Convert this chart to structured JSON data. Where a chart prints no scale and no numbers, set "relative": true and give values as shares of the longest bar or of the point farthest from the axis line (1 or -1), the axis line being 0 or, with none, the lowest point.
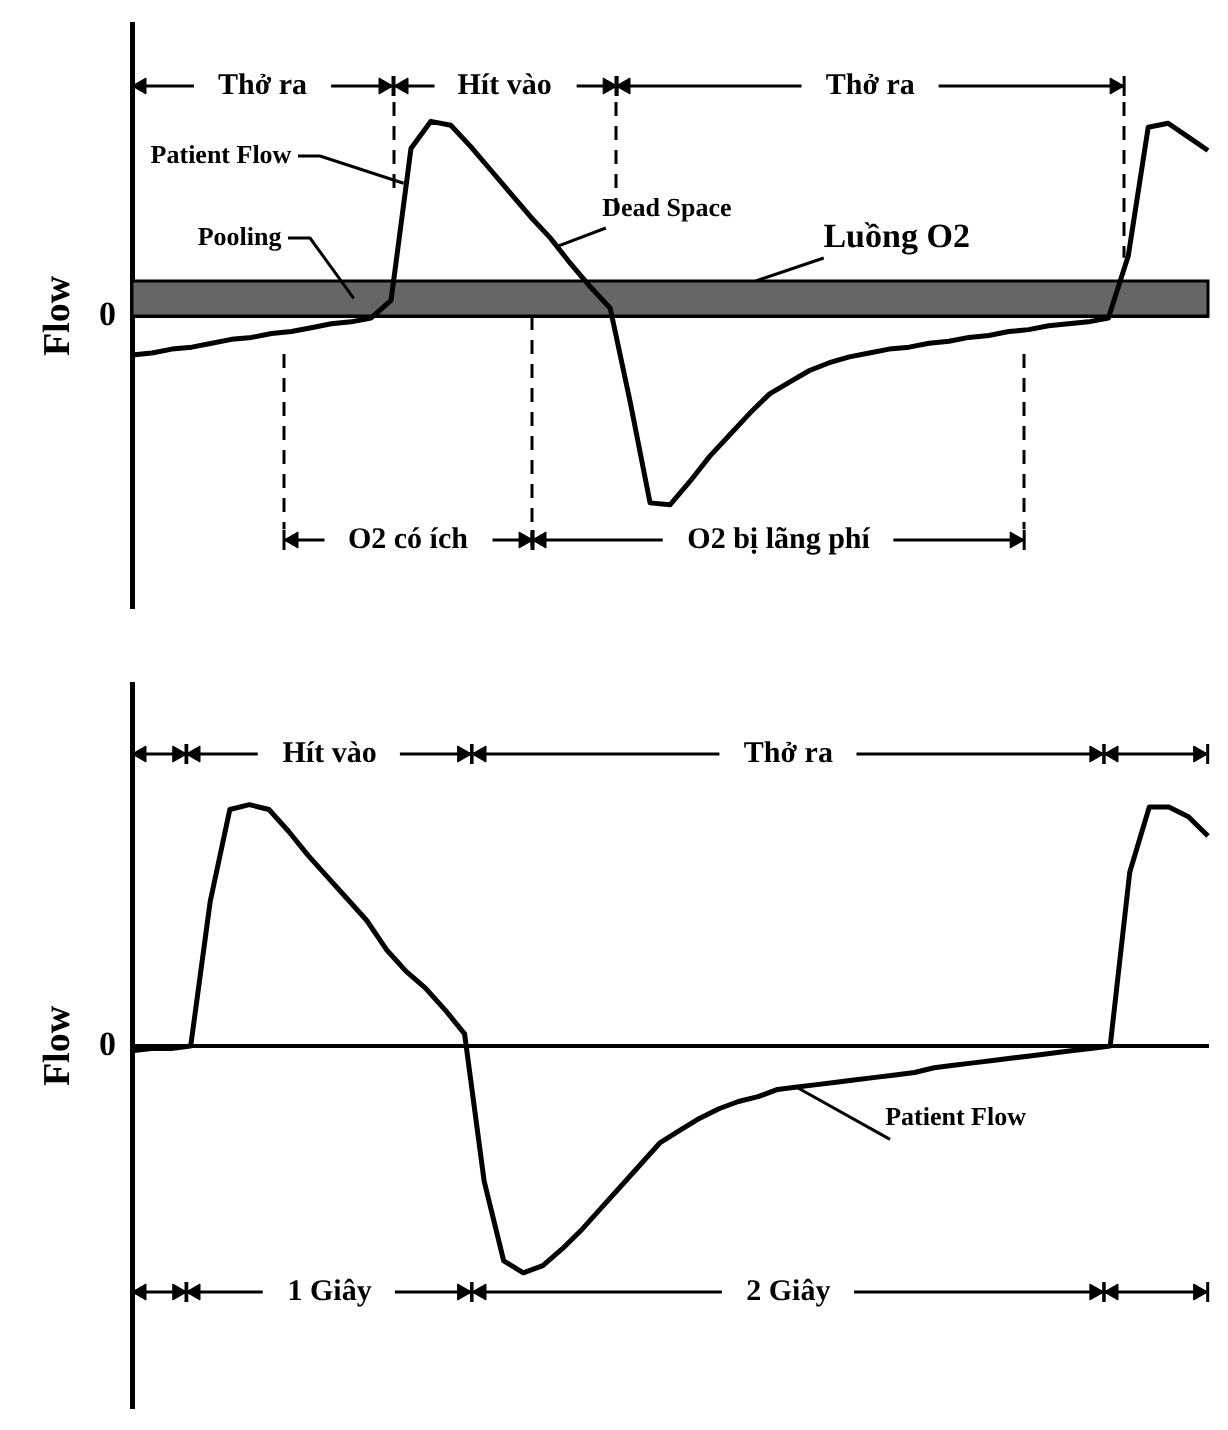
{
  "chart_data": [
    {
      "type": "line",
      "relative": true,
      "ylabel": "Flow",
      "legend": false,
      "grid": false,
      "marker": "none",
      "line_style": "solid",
      "categories": [
        null,
        null,
        null,
        null,
        null,
        null,
        null,
        null,
        null,
        null,
        null,
        null,
        null,
        null,
        null,
        null,
        null,
        null,
        null,
        null,
        null,
        null,
        null,
        null,
        null,
        null,
        null,
        null,
        null,
        null,
        null,
        null,
        null,
        null,
        null,
        null,
        null,
        null,
        null,
        null,
        null,
        null,
        null,
        null,
        null,
        null,
        null,
        null,
        null,
        null,
        null,
        null,
        null,
        null,
        null
      ],
      "series": [
        {
          "color": "#000000",
          "values": [
            -0.2,
            -0.19,
            -0.17,
            -0.16,
            -0.14,
            -0.12,
            -0.11,
            -0.09,
            -0.08,
            -0.06,
            -0.04,
            -0.03,
            -0.01,
            0.08,
            0.86,
            1.0,
            0.98,
            0.87,
            0.75,
            0.63,
            0.51,
            0.4,
            0.27,
            0.15,
            0.04,
            -0.44,
            -0.96,
            -0.97,
            -0.85,
            -0.72,
            -0.61,
            -0.5,
            -0.4,
            -0.34,
            -0.28,
            -0.24,
            -0.21,
            -0.19,
            -0.17,
            -0.16,
            -0.14,
            -0.13,
            -0.11,
            -0.1,
            -0.08,
            -0.07,
            -0.05,
            -0.04,
            -0.03,
            -0.01,
            0.31,
            0.97,
            0.99,
            0.92,
            0.85
          ]
        }
      ],
      "bands": [
        {
          "axis": "y",
          "from": 0,
          "to": 0.18,
          "label": "Luồng O2",
          "color": "#666666"
        }
      ],
      "annotations": [
        "Thở ra",
        "Hít vào",
        "Thở ra",
        "Pooling",
        "Dead Space",
        "O2 có ích",
        "O2 bị lãng phí",
        "0",
        "Patient Flow"
      ]
    },
    {
      "type": "line",
      "relative": true,
      "ylabel": "Flow",
      "legend": false,
      "grid": false,
      "marker": "none",
      "line_style": "solid",
      "categories": [
        null,
        null,
        null,
        null,
        null,
        null,
        null,
        null,
        null,
        null,
        null,
        null,
        null,
        null,
        null,
        null,
        null,
        null,
        null,
        null,
        null,
        null,
        null,
        null,
        null,
        null,
        null,
        null,
        null,
        null,
        null,
        null,
        null,
        null,
        null,
        null,
        null,
        null,
        null,
        null,
        null,
        null,
        null,
        null,
        null,
        null,
        null,
        null,
        null,
        null,
        null,
        null,
        null,
        null,
        null,
        null
      ],
      "series": [
        {
          "color": "#000000",
          "values": [
            -0.02,
            -0.01,
            -0.01,
            0,
            0.6,
            0.98,
            1.0,
            0.98,
            0.89,
            0.79,
            0.7,
            0.61,
            0.52,
            0.4,
            0.31,
            0.24,
            0.15,
            0.05,
            -0.56,
            -0.89,
            -0.94,
            -0.91,
            -0.84,
            -0.76,
            -0.67,
            -0.58,
            -0.49,
            -0.4,
            -0.35,
            -0.3,
            -0.26,
            -0.23,
            -0.21,
            -0.18,
            -0.17,
            -0.16,
            -0.15,
            -0.14,
            -0.13,
            -0.12,
            -0.11,
            -0.09,
            -0.08,
            -0.07,
            -0.06,
            -0.05,
            -0.04,
            -0.03,
            -0.02,
            -0.01,
            0,
            0.72,
            0.99,
            0.99,
            0.95,
            0.87
          ]
        }
      ],
      "annotations": [
        "Hít vào",
        "Thở ra",
        "1 Giây",
        "2 Giây",
        "0",
        "Patient Flow"
      ]
    }
  ]
}
